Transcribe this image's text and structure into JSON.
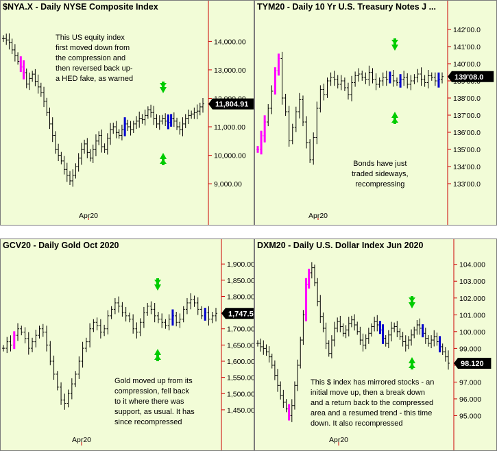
{
  "chart_data": [
    {
      "id": "nya",
      "type": "ohlc",
      "title": "$NYA.X - Daily  NYSE Composite Index",
      "x_tick_labels": [
        "Apr20"
      ],
      "y_ticks": [
        "14,000.00",
        "13,000.00",
        "12,000.00",
        "11,000.00",
        "10,000.00",
        "9,000.00"
      ],
      "y_tick_values": [
        14000,
        13000,
        12000,
        11000,
        10000,
        9000
      ],
      "ylim": [
        8400,
        14900
      ],
      "last_value": "11,804.91",
      "last_value_num": 11804.91,
      "annotation": "This US equity index\nfirst moved down from\nthe compression and\nthen reversed back up-\na HED fake, as warned",
      "closes": [
        14100,
        14050,
        13950,
        13700,
        13500,
        13300,
        13100,
        12900,
        12500,
        12700,
        12850,
        12600,
        12400,
        12200,
        11900,
        11500,
        11100,
        10700,
        10200,
        10000,
        9800,
        9500,
        9300,
        9100,
        9300,
        9600,
        9900,
        10200,
        10400,
        10100,
        9900,
        10200,
        10500,
        10700,
        10300,
        10200,
        10600,
        10900,
        11000,
        10800,
        10700,
        10900,
        11100,
        11000,
        10900,
        11100,
        11200,
        11300,
        11250,
        11400,
        11600,
        11500,
        11300,
        11100,
        11200,
        11300,
        11200,
        11150,
        11300,
        11200,
        11000,
        10900,
        11100,
        11300,
        11400,
        11450,
        11500,
        11550,
        11700,
        11804.91
      ],
      "down_days": [
        6,
        7
      ],
      "up_days": [
        42,
        57,
        58
      ]
    },
    {
      "id": "tym",
      "type": "ohlc",
      "title": "TYM20 - Daily  10 Yr U.S. Treasury Notes J ...",
      "x_tick_labels": [
        "Apr20"
      ],
      "y_ticks": [
        "142'00.0",
        "141'00.0",
        "140'00.0",
        "139'00.0",
        "138'00.0",
        "137'00.0",
        "136'00.0",
        "135'00.0",
        "134'00.0",
        "133'00.0"
      ],
      "y_tick_values": [
        142,
        141,
        140,
        139,
        138,
        137,
        136,
        135,
        134,
        133
      ],
      "ylim": [
        132,
        142.8
      ],
      "last_value": "139'08.0",
      "last_value_num": 139.25,
      "annotation": "Bonds have just\ntraded sideways,\nrecompressing",
      "closes": [
        135.0,
        135.8,
        136.6,
        137.4,
        138.4,
        139.6,
        140.3,
        138.0,
        137.2,
        135.5,
        136.3,
        137.2,
        137.9,
        136.6,
        135.4,
        134.4,
        135.7,
        137.4,
        138.5,
        138.2,
        139.0,
        139.2,
        139.1,
        138.8,
        139.0,
        138.6,
        138.2,
        138.9,
        139.3,
        139.4,
        139.2,
        139.1,
        139.5,
        139.1,
        138.8,
        139.0,
        139.2,
        139.1,
        139.3,
        139.0,
        138.9,
        139.1,
        139.2,
        138.8,
        139.0,
        139.2,
        139.4,
        139.1,
        138.9,
        139.3,
        139.2,
        139.0,
        139.1,
        139.25
      ],
      "down_days": [
        0,
        1,
        2,
        5,
        6
      ],
      "up_days": [
        38,
        41,
        52
      ]
    },
    {
      "id": "gc",
      "type": "ohlc",
      "title": "GCV20 - Daily  Gold Oct 2020",
      "x_tick_labels": [
        "Apr20"
      ],
      "y_ticks": [
        "1,900.00",
        "1,850.00",
        "1,800.00",
        "1,750.00",
        "1,700.00",
        "1,650.00",
        "1,600.00",
        "1,550.00",
        "1,500.00",
        "1,450.00"
      ],
      "y_tick_values": [
        1900,
        1850,
        1800,
        1750,
        1700,
        1650,
        1600,
        1550,
        1500,
        1450
      ],
      "ylim": [
        1380,
        1930
      ],
      "last_value": "1,747.5",
      "last_value_num": 1747.5,
      "annotation": "Gold moved up from its\ncompression, fell back\nto it where there was\nsupport, as usual. It has\nsince recompressed",
      "closes": [
        1640,
        1660,
        1650,
        1680,
        1700,
        1690,
        1670,
        1640,
        1660,
        1680,
        1700,
        1690,
        1650,
        1600,
        1560,
        1520,
        1480,
        1470,
        1500,
        1530,
        1560,
        1600,
        1640,
        1660,
        1700,
        1720,
        1710,
        1690,
        1700,
        1740,
        1760,
        1780,
        1770,
        1750,
        1740,
        1730,
        1700,
        1690,
        1720,
        1750,
        1770,
        1760,
        1740,
        1730,
        1720,
        1710,
        1730,
        1740,
        1720,
        1730,
        1760,
        1780,
        1790,
        1780,
        1760,
        1740,
        1750,
        1730,
        1740,
        1747.5
      ],
      "down_days": [
        3
      ],
      "up_days": [
        47,
        56
      ]
    },
    {
      "id": "dxm",
      "type": "ohlc",
      "title": "DXM20 - Daily  U.S. Dollar Index Jun 2020",
      "x_tick_labels": [
        "Apr20"
      ],
      "y_ticks": [
        "104.000",
        "103.000",
        "102.000",
        "101.000",
        "100.000",
        "99.000",
        "98.000",
        "97.000",
        "96.000",
        "95.000"
      ],
      "y_tick_values": [
        104,
        103,
        102,
        101,
        100,
        99,
        98,
        97,
        96,
        95
      ],
      "ylim": [
        94,
        104.6
      ],
      "last_value": "98.120",
      "last_value_num": 98.12,
      "annotation": "This $ index has mirrored stocks - an\ninitial move up, then a break down\nand a return back to the compressed\narea and a resumed trend - this time\ndown. It also recompressed",
      "closes": [
        99.3,
        99.1,
        99.0,
        98.8,
        98.5,
        98.0,
        97.4,
        96.8,
        96.2,
        95.8,
        95.4,
        95.0,
        95.6,
        96.8,
        98.0,
        99.5,
        101.0,
        102.8,
        103.5,
        103.8,
        102.9,
        101.8,
        100.9,
        100.2,
        99.3,
        98.7,
        99.5,
        100.2,
        100.6,
        100.3,
        99.9,
        100.1,
        100.5,
        100.7,
        100.4,
        100.0,
        99.5,
        99.2,
        99.6,
        99.9,
        100.3,
        100.6,
        100.4,
        100.1,
        99.6,
        99.3,
        99.8,
        100.2,
        100.3,
        100.0,
        99.7,
        99.4,
        99.2,
        99.5,
        99.8,
        100.1,
        100.4,
        100.2,
        99.9,
        99.6,
        99.3,
        99.5,
        99.7,
        99.4,
        99.1,
        98.8,
        98.5,
        98.12
      ],
      "down_days": [
        11,
        17,
        18
      ],
      "up_days": [
        43,
        44,
        58,
        64
      ]
    }
  ],
  "colors": {
    "panel_bg": "#f2fcd7",
    "axis_line": "#cc0000",
    "bar": "#000000",
    "magenta": "#ff00ff",
    "blue": "#0000cc",
    "green_arrow": "#00cc00",
    "last_bg": "#000000"
  }
}
